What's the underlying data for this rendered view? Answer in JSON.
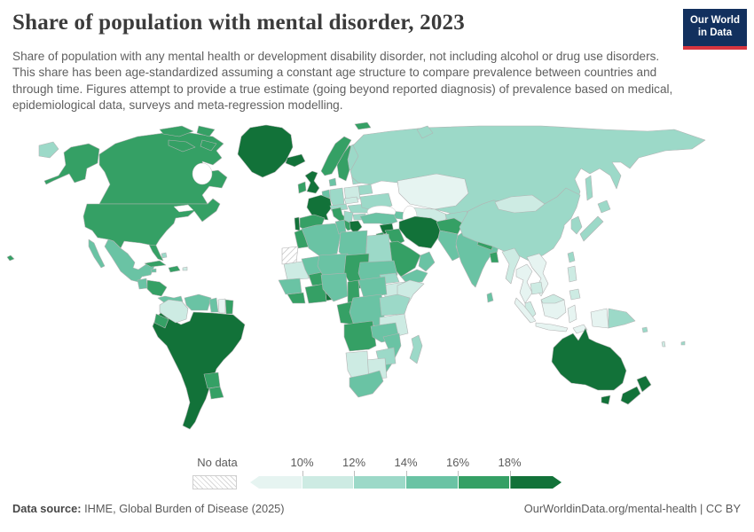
{
  "header": {
    "title": "Share of population with mental disorder, 2023",
    "subtitle": "Share of population with any mental health or development disability disorder, not including alcohol or drug use disorders. This share has been age-standardized assuming a constant age structure to compare prevalence between countries and through time. Figures attempt to provide a true estimate (going beyond reported diagnosis) of prevalence based on medical, epidemiological data, surveys and meta-regression modelling.",
    "logo": {
      "line1": "Our World",
      "line2": "in Data",
      "bg_color": "#12305e",
      "accent_color": "#d7353f"
    }
  },
  "legend": {
    "no_data_label": "No data",
    "ticks": [
      "10%",
      "12%",
      "14%",
      "16%",
      "18%"
    ],
    "palette": [
      "#e6f4f1",
      "#cdebe3",
      "#9cd9c8",
      "#6ac3a4",
      "#35a065",
      "#127239"
    ],
    "no_data_pattern": "diagonal-hatch"
  },
  "footer": {
    "source_label": "Data source:",
    "source_text": " IHME, Global Burden of Disease (2025)",
    "right_text": "OurWorldinData.org/mental-health | CC BY"
  },
  "map": {
    "border_color": "#b3b3b3",
    "countries": {
      "chukotka": 2,
      "alaska": 4,
      "hawaii": 4,
      "canada": 4,
      "canada-arctic": 4,
      "greenland": 5,
      "usa": 4,
      "mexico": 3,
      "guatemala": 3,
      "honduras-nicaragua": 4,
      "costa-rica-panama": 3,
      "cuba": 4,
      "hispaniola": 4,
      "jamaica": 3,
      "puerto-rico": 1,
      "bahamas": 2,
      "colombia": 1,
      "venezuela": 3,
      "guyana": 3,
      "suriname": 0,
      "french-guiana": 4,
      "ecuador": 4,
      "south-american-core": 5,
      "paraguay": 4,
      "uruguay": 4,
      "iceland": 5,
      "uk": 5,
      "ireland": 4,
      "norway": 4,
      "sweden": 4,
      "finland": 2,
      "denmark": 3,
      "benelux": 3,
      "germany": 2,
      "poland": 1,
      "france": 5,
      "spain": 4,
      "portugal": 5,
      "italy": 4,
      "switzerland-austria": 2,
      "czech-slovakia": 1,
      "hungary-romania": 2,
      "balkans": 2,
      "bulgaria": 2,
      "greece": 5,
      "ukraine": 2,
      "belarus": 2,
      "baltics": 2,
      "russia": 2,
      "svalbard": 4,
      "novaya-zemlya": 2,
      "sakhalin": 2,
      "kazakhstan": 0,
      "central-asia": 1,
      "kyrgyz-tajik": 2,
      "caucasus": 3,
      "turkey": 3,
      "syria": 5,
      "iraq": 4,
      "jordan-israel": 4,
      "iran": 5,
      "saudi-arabia": 4,
      "yemen": 3,
      "oman": 3,
      "afghanistan": 4,
      "pakistan": 3,
      "india": 3,
      "nepal": 4,
      "bangladesh": 4,
      "sri-lanka": 3,
      "china": 2,
      "mongolia": 1,
      "korea": 2,
      "japan": 2,
      "taiwan": 2,
      "myanmar": 1,
      "thailand": 0,
      "laos-vietnam": 0,
      "cambodia": 1,
      "malay-peninsula": 1,
      "sumatra": 0,
      "java": 0,
      "borneo": 0,
      "malaysia-borneo": 1,
      "sulawesi": 0,
      "timor": 0,
      "philippines": 1,
      "west-papua": 0,
      "papua-new-guinea": 2,
      "solomons": 2,
      "fiji": 2,
      "vanuatu": 1,
      "australia": 5,
      "tasmania": 5,
      "new-zealand": 5,
      "morocco": 4,
      "western-sahara": -1,
      "mauritania": 1,
      "senegal-guinea": 3,
      "sierra-liberia": 4,
      "mali": 3,
      "burkina": 4,
      "ivory-ghana": 4,
      "togo-benin": 5,
      "algeria": 3,
      "tunisia": 3,
      "libya": 3,
      "egypt": 2,
      "niger": 3,
      "chad": 4,
      "nigeria": 3,
      "sudan": 3,
      "eritrea": 2,
      "ethiopia": 1,
      "somalia": 1,
      "cameroon": 4,
      "car": 3,
      "gabon-congo": 4,
      "drc": 3,
      "uganda-kenya": 2,
      "tanzania": 1,
      "angola": 4,
      "zambia": 3,
      "mozambique": 3,
      "zimbabwe": 2,
      "botswana": 1,
      "namibia": 1,
      "south-africa": 3,
      "madagascar": 2
    }
  },
  "chart_data": {
    "type": "choropleth",
    "title": "Share of population with mental disorder, 2023",
    "unit": "% of population (age-standardized)",
    "bins": [
      "<10%",
      "10-12%",
      "12-14%",
      "14-16%",
      "16-18%",
      ">18%",
      "No data"
    ],
    "bin_colors": [
      "#e6f4f1",
      "#cdebe3",
      "#9cd9c8",
      "#6ac3a4",
      "#35a065",
      "#127239",
      "hatched"
    ],
    "legend_ticks": [
      "10%",
      "12%",
      "14%",
      "16%",
      "18%"
    ],
    "values": {
      "United States": "16-18%",
      "Canada": "16-18%",
      "Greenland": ">18%",
      "Mexico": "14-16%",
      "Cuba": "16-18%",
      "Colombia": "10-12%",
      "Venezuela": "14-16%",
      "Ecuador": "16-18%",
      "Peru": ">18%",
      "Brazil": ">18%",
      "Bolivia": ">18%",
      "Chile": ">18%",
      "Argentina": ">18%",
      "Paraguay": "16-18%",
      "Uruguay": "16-18%",
      "Iceland": ">18%",
      "United Kingdom": ">18%",
      "Ireland": "16-18%",
      "France": ">18%",
      "Portugal": ">18%",
      "Spain": "16-18%",
      "Norway": "16-18%",
      "Sweden": "16-18%",
      "Finland": "12-14%",
      "Germany": "12-14%",
      "Poland": "10-12%",
      "Ukraine": "12-14%",
      "Italy": "16-18%",
      "Greece": ">18%",
      "Russia": "12-14%",
      "Kazakhstan": "<10%",
      "Turkey": "14-16%",
      "Syria": ">18%",
      "Iraq": "16-18%",
      "Iran": ">18%",
      "Saudi Arabia": "16-18%",
      "Yemen": "14-16%",
      "Afghanistan": "16-18%",
      "Pakistan": "14-16%",
      "India": "14-16%",
      "Nepal": "16-18%",
      "Bangladesh": "16-18%",
      "Sri Lanka": "14-16%",
      "China": "12-14%",
      "Mongolia": "10-12%",
      "Japan": "12-14%",
      "South Korea": "12-14%",
      "Myanmar": "10-12%",
      "Thailand": "<10%",
      "Vietnam": "<10%",
      "Cambodia": "10-12%",
      "Malaysia": "10-12%",
      "Indonesia": "<10%",
      "Philippines": "10-12%",
      "Papua New Guinea": "12-14%",
      "Australia": ">18%",
      "New Zealand": ">18%",
      "Morocco": "16-18%",
      "Algeria": "14-16%",
      "Libya": "14-16%",
      "Egypt": "12-14%",
      "Mali": "14-16%",
      "Niger": "14-16%",
      "Chad": "16-18%",
      "Sudan": "14-16%",
      "Ethiopia": "10-12%",
      "Somalia": "10-12%",
      "Nigeria": "14-16%",
      "Ghana": "16-18%",
      "Benin": ">18%",
      "Cameroon": "16-18%",
      "DR Congo": "14-16%",
      "Angola": "16-18%",
      "Zambia": "14-16%",
      "Tanzania": "10-12%",
      "Kenya": "12-14%",
      "Mozambique": "14-16%",
      "Zimbabwe": "12-14%",
      "Botswana": "10-12%",
      "Namibia": "10-12%",
      "South Africa": "14-16%",
      "Madagascar": "12-14%",
      "Western Sahara": "No data"
    }
  }
}
